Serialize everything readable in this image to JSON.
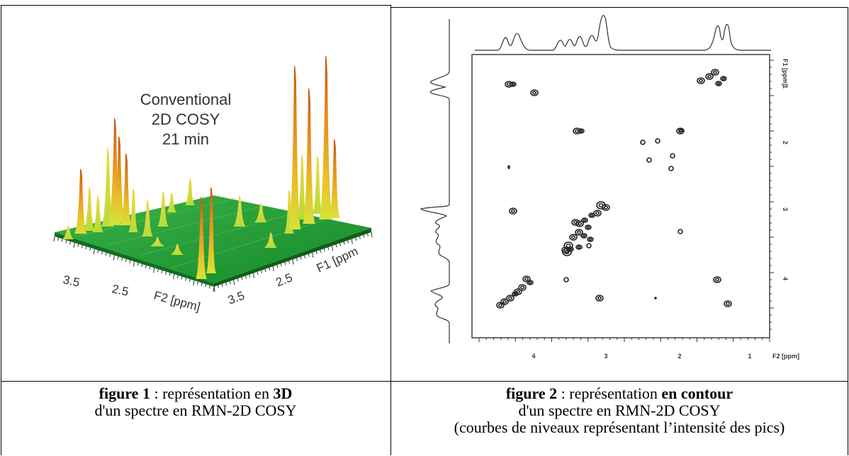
{
  "figure1": {
    "annotation": [
      "Conventional",
      "2D COSY",
      "21 min"
    ],
    "axis_f2": {
      "label": "F2 [ppm]",
      "ticks": [
        "3.5",
        "2.5"
      ]
    },
    "axis_f1": {
      "label": "F1 [ppm",
      "ticks": [
        "3.5",
        "2.5"
      ]
    },
    "caption": {
      "line1_bold": "figure 1",
      "line1_text": " : représentation en ",
      "line1_bold2": "3D",
      "line2": "d'un spectre en RMN-2D COSY"
    }
  },
  "figure2": {
    "axis_f1": {
      "label": "F1 [ppm]",
      "ticks": [
        "1",
        "2",
        "3",
        "4"
      ]
    },
    "axis_f2": {
      "label": "F2 [ppm]",
      "ticks": [
        "4",
        "3",
        "2",
        "1"
      ]
    },
    "caption": {
      "line1_bold": "figure 2",
      "line1_text": " : représentation ",
      "line1_bold2": "en contour",
      "line2": "d'un spectre en RMN-2D COSY",
      "line3": "(courbes de niveaux représentant l’intensité des pics)"
    }
  },
  "colors": {
    "surface_green": "#1f9a2f",
    "peak_orange": "#e07a14",
    "peak_yellow": "#e8d42a"
  }
}
